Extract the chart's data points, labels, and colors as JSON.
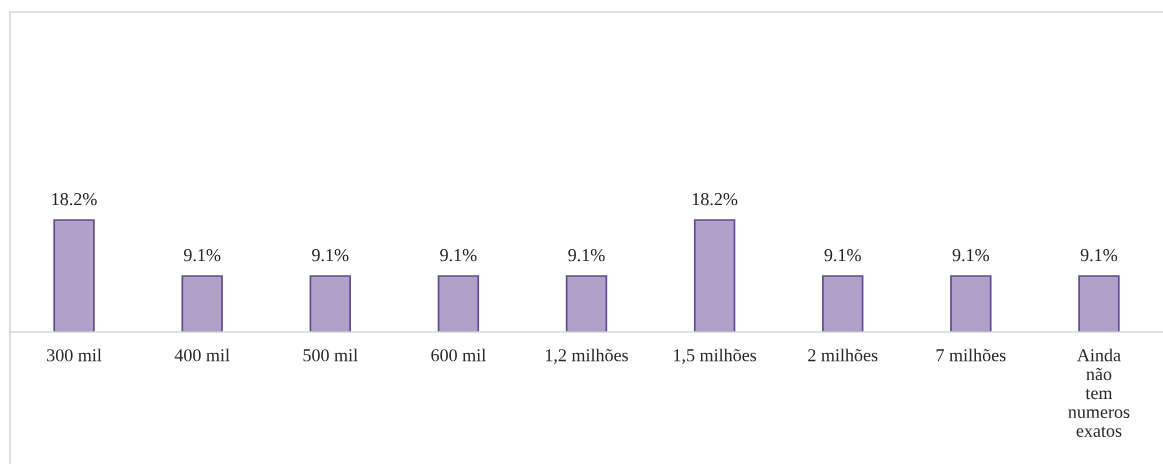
{
  "chart_data": {
    "type": "bar",
    "categories": [
      "300 mil",
      "400 mil",
      "500 mil",
      "600 mil",
      "1,2 milhões",
      "1,5 milhões",
      "2 milhões",
      "7 milhões",
      "Ainda não tem numeros exatos"
    ],
    "values": [
      18.2,
      9.1,
      9.1,
      9.1,
      9.1,
      18.2,
      9.1,
      9.1,
      9.1
    ],
    "value_labels": [
      "18.2%",
      "9.1%",
      "9.1%",
      "9.1%",
      "9.1%",
      "18.2%",
      "9.1%",
      "9.1%",
      "9.1%"
    ],
    "color": "#b1a0c7",
    "ylim": [
      0,
      52
    ],
    "tick_labels": "x",
    "grid": false,
    "legend": false
  }
}
